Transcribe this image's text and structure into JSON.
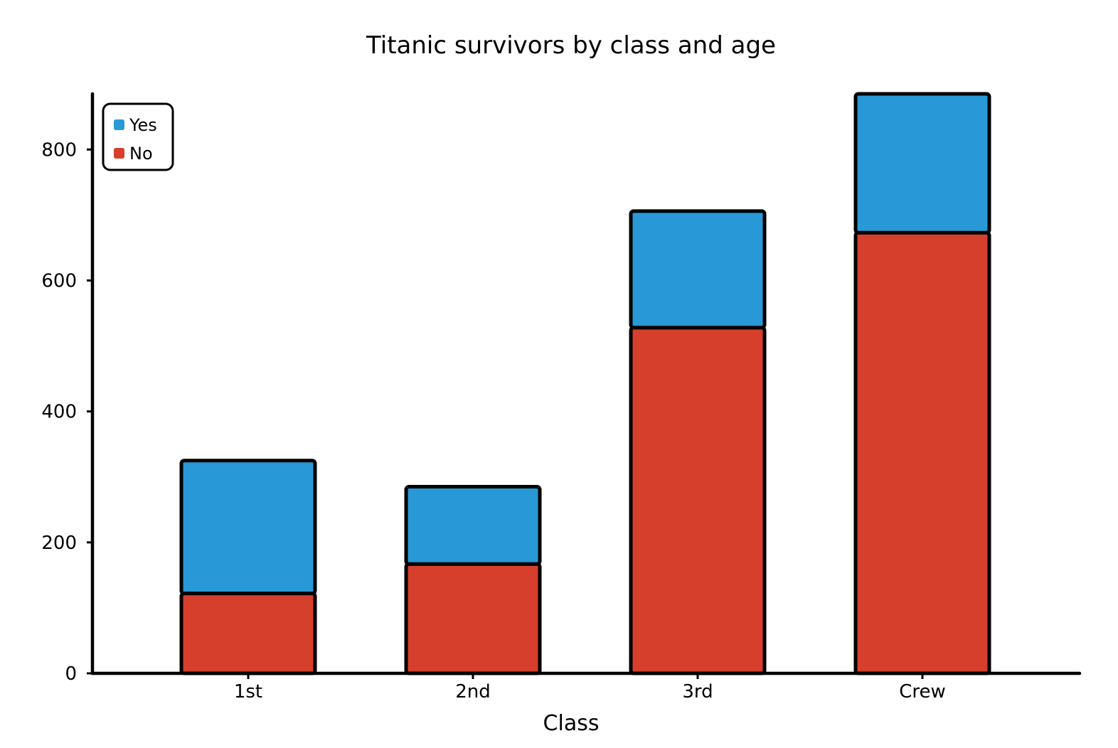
{
  "chart_data": {
    "type": "bar",
    "stacked": true,
    "title": "Titanic survivors by class and age",
    "xlabel": "Class",
    "ylabel": "",
    "categories": [
      "1st",
      "2nd",
      "3rd",
      "Crew"
    ],
    "series": [
      {
        "name": "No",
        "values": [
          122,
          167,
          528,
          673
        ],
        "color": "#d63f2c"
      },
      {
        "name": "Yes",
        "values": [
          203,
          118,
          178,
          212
        ],
        "color": "#2899d6"
      }
    ],
    "ylim": [
      0,
      885
    ],
    "yticks": [
      0,
      200,
      400,
      600,
      800
    ],
    "grid": false,
    "legend": {
      "position": "top-left",
      "entries": [
        {
          "label": "Yes",
          "color": "#2899d6"
        },
        {
          "label": "No",
          "color": "#d63f2c"
        }
      ]
    }
  }
}
